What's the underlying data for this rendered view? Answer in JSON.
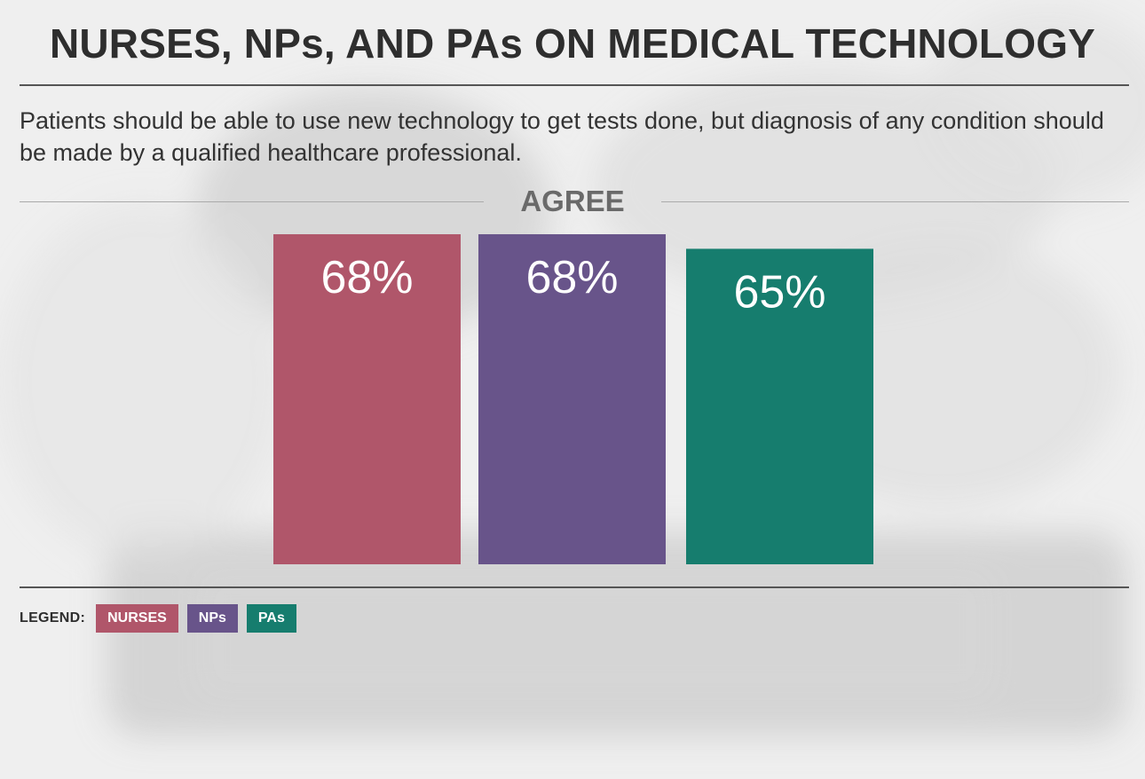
{
  "title": "NURSES, NPs, AND PAs ON MEDICAL TECHNOLOGY",
  "subtitle": "Patients should be able to use new technology to get tests done, but diagnosis of any condition should be made by a qualified healthcare professional.",
  "legend": {
    "title": "LEGEND:",
    "items": [
      {
        "label": "NURSES",
        "color": "#b0566a"
      },
      {
        "label": "NPs",
        "color": "#68548a"
      },
      {
        "label": "PAs",
        "color": "#167d6e"
      }
    ]
  },
  "chart_data": {
    "type": "bar",
    "title": "AGREE",
    "categories": [
      "NURSES",
      "NPs",
      "PAs"
    ],
    "values": [
      68,
      68,
      65
    ],
    "value_labels": [
      "68%",
      "68%",
      "65%"
    ],
    "colors": [
      "#b0566a",
      "#68548a",
      "#167d6e"
    ],
    "ylim": [
      0,
      68
    ],
    "grid": false,
    "legend_position": "bottom-left"
  }
}
